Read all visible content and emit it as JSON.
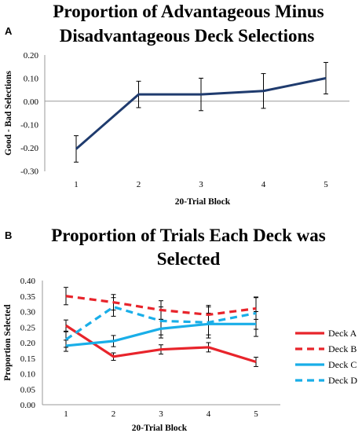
{
  "chart_data": [
    {
      "panel": "A",
      "type": "line",
      "title_lines": [
        "Proportion of Advantageous Minus",
        "Disadvantageous Deck Selections"
      ],
      "xlabel": "20-Trial Block",
      "ylabel": "Good - Bad Selections",
      "categories": [
        "1",
        "2",
        "3",
        "4",
        "5"
      ],
      "ylim": [
        -0.3,
        0.2
      ],
      "yticks": [
        "0.20",
        "0.10",
        "0.00",
        "-0.10",
        "-0.20",
        "-0.30"
      ],
      "grid": false,
      "series": [
        {
          "color": "#1f3b6e",
          "dash": "solid",
          "values": [
            -0.205,
            0.03,
            0.03,
            0.045,
            0.1
          ],
          "error": [
            0.057,
            0.057,
            0.07,
            0.075,
            0.068
          ]
        }
      ]
    },
    {
      "panel": "B",
      "type": "line",
      "title_lines": [
        "Proportion of Trials Each Deck was",
        "Selected"
      ],
      "xlabel": "20-Trial Block",
      "ylabel": "Proportion Selected",
      "categories": [
        "1",
        "2",
        "3",
        "4",
        "5"
      ],
      "ylim": [
        0.0,
        0.4
      ],
      "yticks": [
        "0.40",
        "0.35",
        "0.30",
        "0.25",
        "0.20",
        "0.15",
        "0.10",
        "0.05",
        "0.00"
      ],
      "grid": false,
      "legend_position": "right",
      "series": [
        {
          "name": "Deck A",
          "color": "#e8242b",
          "dash": "solid",
          "values": [
            0.255,
            0.155,
            0.178,
            0.185,
            0.138
          ],
          "error": [
            0.018,
            0.012,
            0.015,
            0.015,
            0.015
          ]
        },
        {
          "name": "Deck B",
          "color": "#e8242b",
          "dash": "dashed",
          "values": [
            0.35,
            0.33,
            0.305,
            0.29,
            0.31
          ],
          "error": [
            0.028,
            0.025,
            0.03,
            0.03,
            0.035
          ]
        },
        {
          "name": "Deck C",
          "color": "#19aee8",
          "dash": "solid",
          "values": [
            0.19,
            0.205,
            0.245,
            0.26,
            0.26
          ],
          "error": [
            0.018,
            0.018,
            0.03,
            0.035,
            0.04
          ]
        },
        {
          "name": "Deck D",
          "color": "#19aee8",
          "dash": "dashed",
          "values": [
            0.21,
            0.315,
            0.27,
            0.265,
            0.295
          ],
          "error": [
            0.025,
            0.03,
            0.045,
            0.05,
            0.052
          ]
        }
      ]
    }
  ]
}
